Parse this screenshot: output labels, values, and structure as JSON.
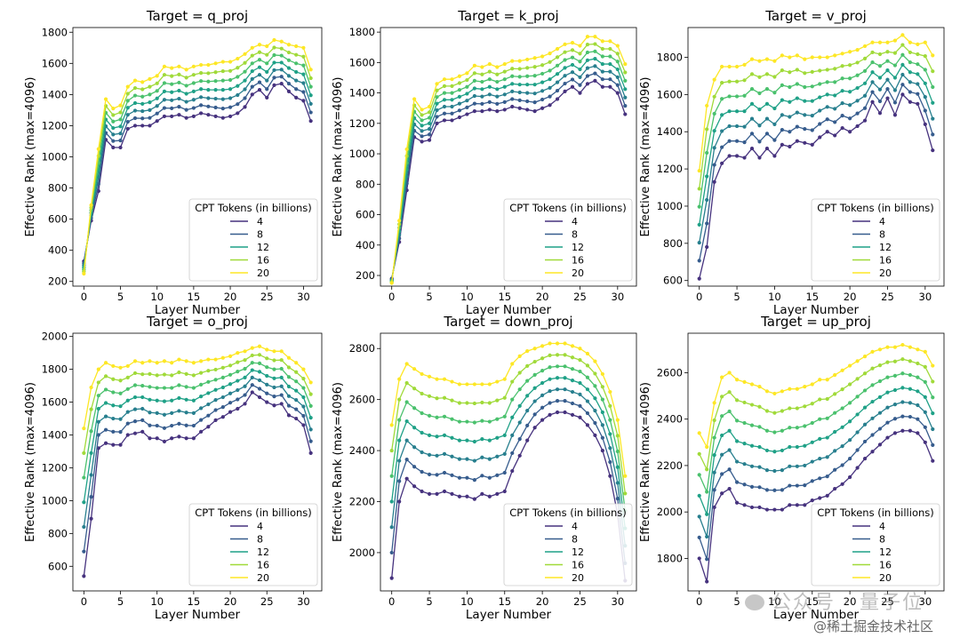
{
  "colors": [
    "#46327e",
    "#365c8d",
    "#277f8e",
    "#1fa187",
    "#4ac16d",
    "#a0da39",
    "#fde725"
  ],
  "chart_data": [
    {
      "type": "line",
      "title": "Target = q_proj",
      "xlabel": "Layer Number",
      "ylabel": "Effective Rank (max=4096)",
      "xticks": [
        "0",
        "5",
        "10",
        "15",
        "20",
        "25",
        "30"
      ],
      "yticks": [
        "200",
        "400",
        "600",
        "800",
        "1000",
        "1200",
        "1400",
        "1600",
        "1800"
      ],
      "xlim": [
        -1.5,
        32.5
      ],
      "ylim": [
        170,
        1830
      ],
      "legend": {
        "title": "CPT Tokens (in billions)",
        "entries": [
          "4",
          "8",
          "12",
          "16",
          "20"
        ],
        "position": "lower-right"
      },
      "series_count": 7,
      "base": [
        330,
        590,
        780,
        1110,
        1060,
        1060,
        1180,
        1200,
        1200,
        1200,
        1230,
        1260,
        1260,
        1270,
        1250,
        1260,
        1280,
        1270,
        1260,
        1250,
        1260,
        1280,
        1320,
        1400,
        1430,
        1380,
        1460,
        1470,
        1420,
        1380,
        1360,
        1230
      ],
      "top": [
        250,
        690,
        1050,
        1370,
        1310,
        1330,
        1450,
        1490,
        1480,
        1500,
        1520,
        1580,
        1570,
        1580,
        1560,
        1580,
        1590,
        1590,
        1600,
        1610,
        1610,
        1630,
        1660,
        1700,
        1720,
        1710,
        1750,
        1740,
        1720,
        1710,
        1700,
        1560
      ]
    },
    {
      "type": "line",
      "title": "Target = k_proj",
      "xlabel": "Layer Number",
      "ylabel": "Effective Rank (max=4096)",
      "xticks": [
        "0",
        "5",
        "10",
        "15",
        "20",
        "25",
        "30"
      ],
      "yticks": [
        "200",
        "400",
        "600",
        "800",
        "1000",
        "1200",
        "1400",
        "1600",
        "1800"
      ],
      "xlim": [
        -1.5,
        32.5
      ],
      "ylim": [
        130,
        1830
      ],
      "legend": {
        "title": "CPT Tokens (in billions)",
        "entries": [
          "4",
          "8",
          "12",
          "16",
          "20"
        ],
        "position": "lower-right"
      },
      "series_count": 7,
      "base": [
        180,
        420,
        760,
        1110,
        1080,
        1090,
        1200,
        1220,
        1220,
        1240,
        1260,
        1280,
        1280,
        1290,
        1280,
        1290,
        1310,
        1300,
        1290,
        1280,
        1300,
        1320,
        1360,
        1410,
        1440,
        1400,
        1460,
        1480,
        1440,
        1440,
        1400,
        1260
      ],
      "top": [
        150,
        560,
        1030,
        1360,
        1290,
        1310,
        1460,
        1490,
        1490,
        1510,
        1530,
        1580,
        1570,
        1590,
        1570,
        1590,
        1610,
        1610,
        1620,
        1630,
        1640,
        1660,
        1690,
        1720,
        1730,
        1710,
        1770,
        1770,
        1740,
        1740,
        1710,
        1590
      ]
    },
    {
      "type": "line",
      "title": "Target = v_proj",
      "xlabel": "Layer Number",
      "ylabel": "Effective Rank (max=4096)",
      "xticks": [
        "0",
        "5",
        "10",
        "15",
        "20",
        "25",
        "30"
      ],
      "yticks": [
        "600",
        "800",
        "1000",
        "1200",
        "1400",
        "1600",
        "1800"
      ],
      "xlim": [
        -1.5,
        32.5
      ],
      "ylim": [
        570,
        1960
      ],
      "legend": {
        "title": "CPT Tokens (in billions)",
        "entries": [
          "4",
          "8",
          "12",
          "16",
          "20"
        ],
        "position": "lower-right"
      },
      "series_count": 7,
      "base": [
        610,
        780,
        1130,
        1230,
        1270,
        1270,
        1260,
        1310,
        1260,
        1310,
        1270,
        1330,
        1320,
        1350,
        1340,
        1330,
        1370,
        1400,
        1380,
        1420,
        1400,
        1430,
        1460,
        1560,
        1500,
        1580,
        1490,
        1600,
        1560,
        1550,
        1440,
        1300
      ],
      "top": [
        1190,
        1540,
        1680,
        1750,
        1750,
        1750,
        1760,
        1790,
        1780,
        1790,
        1780,
        1810,
        1800,
        1810,
        1790,
        1800,
        1800,
        1800,
        1810,
        1820,
        1830,
        1840,
        1860,
        1880,
        1880,
        1880,
        1890,
        1920,
        1880,
        1870,
        1880,
        1810
      ]
    },
    {
      "type": "line",
      "title": "Target = o_proj",
      "xlabel": "Layer Number",
      "ylabel": "Effective Rank (max=4096)",
      "xticks": [
        "0",
        "5",
        "10",
        "15",
        "20",
        "25",
        "30"
      ],
      "yticks": [
        "600",
        "800",
        "1000",
        "1200",
        "1400",
        "1600",
        "1800",
        "2000"
      ],
      "xlim": [
        -1.5,
        32.5
      ],
      "ylim": [
        450,
        2020
      ],
      "legend": {
        "title": "CPT Tokens (in billions)",
        "entries": [
          "4",
          "8",
          "12",
          "16",
          "20"
        ],
        "position": "lower-right"
      },
      "series_count": 7,
      "base": [
        540,
        890,
        1320,
        1350,
        1340,
        1340,
        1400,
        1410,
        1420,
        1380,
        1380,
        1360,
        1380,
        1390,
        1380,
        1380,
        1420,
        1450,
        1490,
        1510,
        1540,
        1560,
        1590,
        1660,
        1630,
        1600,
        1580,
        1590,
        1520,
        1500,
        1460,
        1290
      ],
      "top": [
        1440,
        1690,
        1800,
        1840,
        1820,
        1810,
        1820,
        1850,
        1840,
        1850,
        1840,
        1850,
        1840,
        1860,
        1850,
        1840,
        1850,
        1860,
        1860,
        1870,
        1880,
        1900,
        1910,
        1930,
        1940,
        1920,
        1910,
        1910,
        1870,
        1840,
        1800,
        1720
      ]
    },
    {
      "type": "line",
      "title": "Target = down_proj",
      "xlabel": "Layer Number",
      "ylabel": "Effective Rank (max=4096)",
      "xticks": [
        "0",
        "5",
        "10",
        "15",
        "20",
        "25",
        "30"
      ],
      "yticks": [
        "2000",
        "2200",
        "2400",
        "2600",
        "2800"
      ],
      "xlim": [
        -1.5,
        32.5
      ],
      "ylim": [
        1850,
        2860
      ],
      "legend": {
        "title": "CPT Tokens (in billions)",
        "entries": [
          "4",
          "8",
          "12",
          "16",
          "20"
        ],
        "position": "lower-right"
      },
      "series_count": 7,
      "base": [
        1900,
        2200,
        2290,
        2260,
        2240,
        2230,
        2230,
        2240,
        2230,
        2220,
        2220,
        2210,
        2230,
        2220,
        2230,
        2240,
        2320,
        2380,
        2440,
        2490,
        2520,
        2540,
        2550,
        2550,
        2540,
        2530,
        2500,
        2460,
        2400,
        2300,
        2150,
        1890
      ],
      "top": [
        2500,
        2680,
        2740,
        2720,
        2700,
        2690,
        2680,
        2680,
        2670,
        2660,
        2660,
        2660,
        2660,
        2660,
        2670,
        2680,
        2740,
        2770,
        2790,
        2800,
        2810,
        2820,
        2820,
        2820,
        2810,
        2800,
        2780,
        2750,
        2700,
        2630,
        2520,
        2300
      ]
    },
    {
      "type": "line",
      "title": "Target = up_proj",
      "xlabel": "Layer Number",
      "ylabel": "Effective Rank (max=4096)",
      "xticks": [
        "0",
        "5",
        "10",
        "15",
        "20",
        "25",
        "30"
      ],
      "yticks": [
        "1800",
        "2000",
        "2200",
        "2400",
        "2600"
      ],
      "xlim": [
        -1.5,
        32.5
      ],
      "ylim": [
        1660,
        2770
      ],
      "legend": {
        "title": "CPT Tokens (in billions)",
        "entries": [
          "4",
          "8",
          "12",
          "16",
          "20"
        ],
        "position": "lower-right"
      },
      "series_count": 7,
      "base": [
        1800,
        1700,
        2020,
        2080,
        2100,
        2040,
        2030,
        2020,
        2020,
        2010,
        2010,
        2010,
        2030,
        2030,
        2030,
        2050,
        2060,
        2070,
        2100,
        2120,
        2150,
        2190,
        2230,
        2260,
        2290,
        2320,
        2340,
        2350,
        2350,
        2340,
        2300,
        2220
      ],
      "top": [
        2340,
        2280,
        2470,
        2580,
        2600,
        2570,
        2560,
        2550,
        2540,
        2520,
        2510,
        2520,
        2530,
        2530,
        2540,
        2550,
        2570,
        2570,
        2590,
        2610,
        2630,
        2650,
        2670,
        2690,
        2700,
        2710,
        2710,
        2720,
        2710,
        2700,
        2690,
        2630
      ]
    }
  ],
  "watermark": {
    "channel": "公众号 · 量子位",
    "site": "@稀土掘金技术社区"
  }
}
